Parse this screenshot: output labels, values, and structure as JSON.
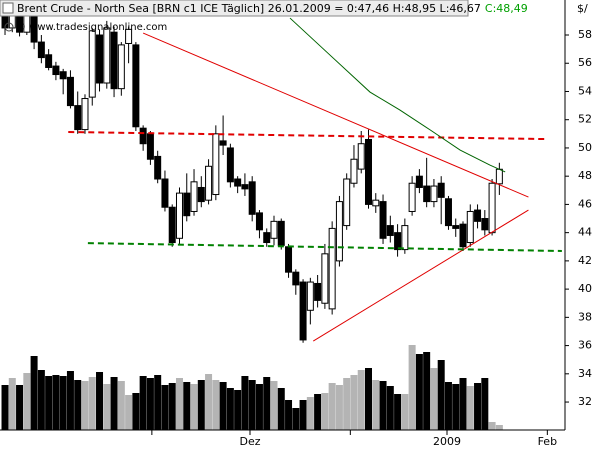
{
  "chart_data": {
    "type": "candlestick",
    "title": "Brent Crude - North Sea [BRN c1 ICE  Täglich] 26.01.2009 = 0:47,46 H:48,95 L:46,67",
    "title_close": "C:48,49",
    "watermark": "© www.tradesignalonline.com",
    "y_axis_label": "$/",
    "up_color": "#ffffff",
    "down_color": "#000000",
    "close_color": "#00a000",
    "categories": [
      null,
      null,
      null,
      null,
      null,
      null,
      null,
      null,
      null,
      null,
      null,
      null,
      null,
      null,
      null,
      null,
      null,
      null,
      null,
      null,
      null,
      null,
      null,
      null,
      null,
      null,
      null,
      null,
      null,
      null,
      null,
      null,
      null,
      null,
      null,
      null,
      null,
      null,
      null,
      null,
      null,
      null,
      null,
      null,
      null,
      null,
      null,
      null,
      null,
      null,
      null,
      null,
      null,
      null,
      null,
      null,
      null,
      null,
      null,
      null,
      null,
      null,
      null,
      null,
      null,
      null,
      null,
      null,
      null
    ],
    "open": [
      59.5,
      58.5,
      59.8,
      58.2,
      59.7,
      57.5,
      56.6,
      55.8,
      55.4,
      55,
      53,
      51.3,
      53.6,
      58,
      54.6,
      58.2,
      54.2,
      57.4,
      57.3,
      51.4,
      51,
      49.4,
      47.8,
      45.8,
      43.6,
      46.8,
      45.5,
      47.2,
      46.3,
      46.7,
      50.5,
      50,
      47.8,
      47.4,
      47.6,
      45.4,
      44,
      43.6,
      44.8,
      43,
      41.2,
      40.5,
      38.5,
      40.4,
      39,
      38.6,
      42,
      44.5,
      47.5,
      48.5,
      50.6,
      45.9,
      46.2,
      44.5,
      44,
      42.8,
      45.5,
      48,
      47.3,
      46.2,
      47.5,
      46.4,
      44.5,
      44.6,
      43.3,
      45.6,
      45,
      44,
      47.46
    ],
    "high": [
      60,
      60,
      60,
      60,
      60,
      58,
      57,
      56.1,
      55.6,
      55.5,
      54,
      53.8,
      58.5,
      58.4,
      59,
      58.6,
      57.5,
      58.6,
      57.5,
      51.6,
      51.2,
      49.8,
      48.4,
      46,
      47.2,
      48.2,
      48.5,
      48,
      49.2,
      51.6,
      52.3,
      50.3,
      48,
      48.2,
      48,
      45.6,
      44.3,
      45.2,
      45,
      43.2,
      41.4,
      40.7,
      40.8,
      41,
      43.2,
      44.8,
      46.6,
      48.2,
      50.2,
      51.2,
      51.3,
      46.8,
      46.7,
      45.2,
      44.6,
      45,
      48,
      48.5,
      49.3,
      47.8,
      48,
      46.6,
      45,
      44.8,
      46,
      46,
      45.6,
      47.8,
      48.95
    ],
    "low": [
      58,
      58.2,
      57.9,
      58,
      57,
      56,
      55.5,
      54.8,
      53.8,
      52.8,
      51,
      51,
      53,
      54,
      54.2,
      53.6,
      53.7,
      56,
      51.2,
      49.8,
      48.8,
      47.5,
      45.5,
      43,
      43.2,
      44.8,
      45.2,
      45.8,
      46,
      46.3,
      49.5,
      47.2,
      46.8,
      46.6,
      44.8,
      43.6,
      43,
      43.1,
      42.8,
      40.8,
      39.6,
      36.2,
      37.5,
      38.7,
      38.6,
      38.2,
      41.6,
      44.2,
      47.2,
      48.2,
      45.7,
      45.4,
      43.2,
      43.3,
      42.3,
      42.5,
      45.2,
      46.8,
      45.8,
      45.8,
      44.6,
      44.2,
      43.7,
      42.7,
      43,
      44.3,
      43.8,
      43.8,
      46.67
    ],
    "close": [
      58.5,
      59.5,
      58.2,
      59.7,
      57.5,
      56.4,
      55.7,
      55.2,
      54.9,
      53,
      51.3,
      53.5,
      58.3,
      54.6,
      58.5,
      54.2,
      57.3,
      58.4,
      51.5,
      50.3,
      49.2,
      47.8,
      45.8,
      43.3,
      46.8,
      45.2,
      47.6,
      46.2,
      48.7,
      51,
      50.2,
      47.6,
      47.3,
      47.1,
      45.3,
      44.2,
      43.3,
      44.8,
      43.1,
      41.2,
      40.3,
      36.4,
      40.5,
      39.2,
      42.5,
      44.3,
      46.2,
      47.8,
      49.2,
      50.3,
      46,
      46.3,
      43.6,
      43.8,
      42.8,
      44.5,
      47.5,
      47.2,
      46.2,
      47.3,
      46.5,
      44.5,
      44.3,
      43,
      45.5,
      44.8,
      44.2,
      47.5,
      48.49
    ],
    "volume": [
      45,
      52,
      45,
      57,
      74,
      60,
      54,
      55,
      54,
      59,
      50,
      49,
      53,
      58,
      46,
      53,
      49,
      35,
      37,
      54,
      52,
      55,
      45,
      47,
      52,
      48,
      46,
      50,
      56,
      50,
      48,
      42,
      40,
      54,
      50,
      46,
      53,
      49,
      42,
      30,
      22,
      30,
      33,
      36,
      37,
      47,
      45,
      52,
      55,
      60,
      62,
      50,
      49,
      44,
      36,
      36,
      85,
      76,
      78,
      62,
      70,
      48,
      46,
      52,
      44,
      47,
      52,
      8,
      5
    ],
    "volume_colors": {
      "up": "#b4b4b4",
      "down": "#000000"
    },
    "vlim": [
      0,
      100
    ],
    "lines": [
      {
        "color": "#e00000",
        "dash": false,
        "x": [
          19.0,
          72.0
        ],
        "values": [
          58.14,
          46.52
        ]
      },
      {
        "color": "#e00000",
        "dash": false,
        "x": [
          42.4,
          72.0
        ],
        "values": [
          36.32,
          45.6
        ]
      },
      {
        "color": "#e00000",
        "dash": true,
        "x": [
          8.7,
          74.3
        ],
        "values": [
          51.13,
          50.63
        ]
      },
      {
        "color": "#008000",
        "dash": true,
        "x": [
          11.4,
          76.6
        ],
        "values": [
          43.26,
          42.7
        ]
      },
      {
        "color": "#006400",
        "dash": false,
        "x": [
          39.2,
          44.7,
          50.2,
          54.3,
          58.5,
          62.6,
          66.7,
          68.8
        ],
        "values": [
          59.2,
          56.58,
          53.96,
          52.69,
          51.27,
          49.85,
          48.79,
          48.3
        ]
      }
    ],
    "xlim": [
      -0.69,
      77.03
    ],
    "xticks": [
      {
        "value": 20.2,
        "label": null
      },
      {
        "value": 33.7,
        "label": "Dez"
      },
      {
        "value": 47.5,
        "label": null
      },
      {
        "value": 60.8,
        "label": "2009"
      },
      {
        "value": 74.6,
        "label": "Feb"
      }
    ],
    "ylim": [
      30.02,
      60.48
    ],
    "yticks": [
      32,
      34,
      36,
      38,
      40,
      42,
      44,
      46,
      48,
      50,
      52,
      54,
      56,
      58
    ]
  }
}
